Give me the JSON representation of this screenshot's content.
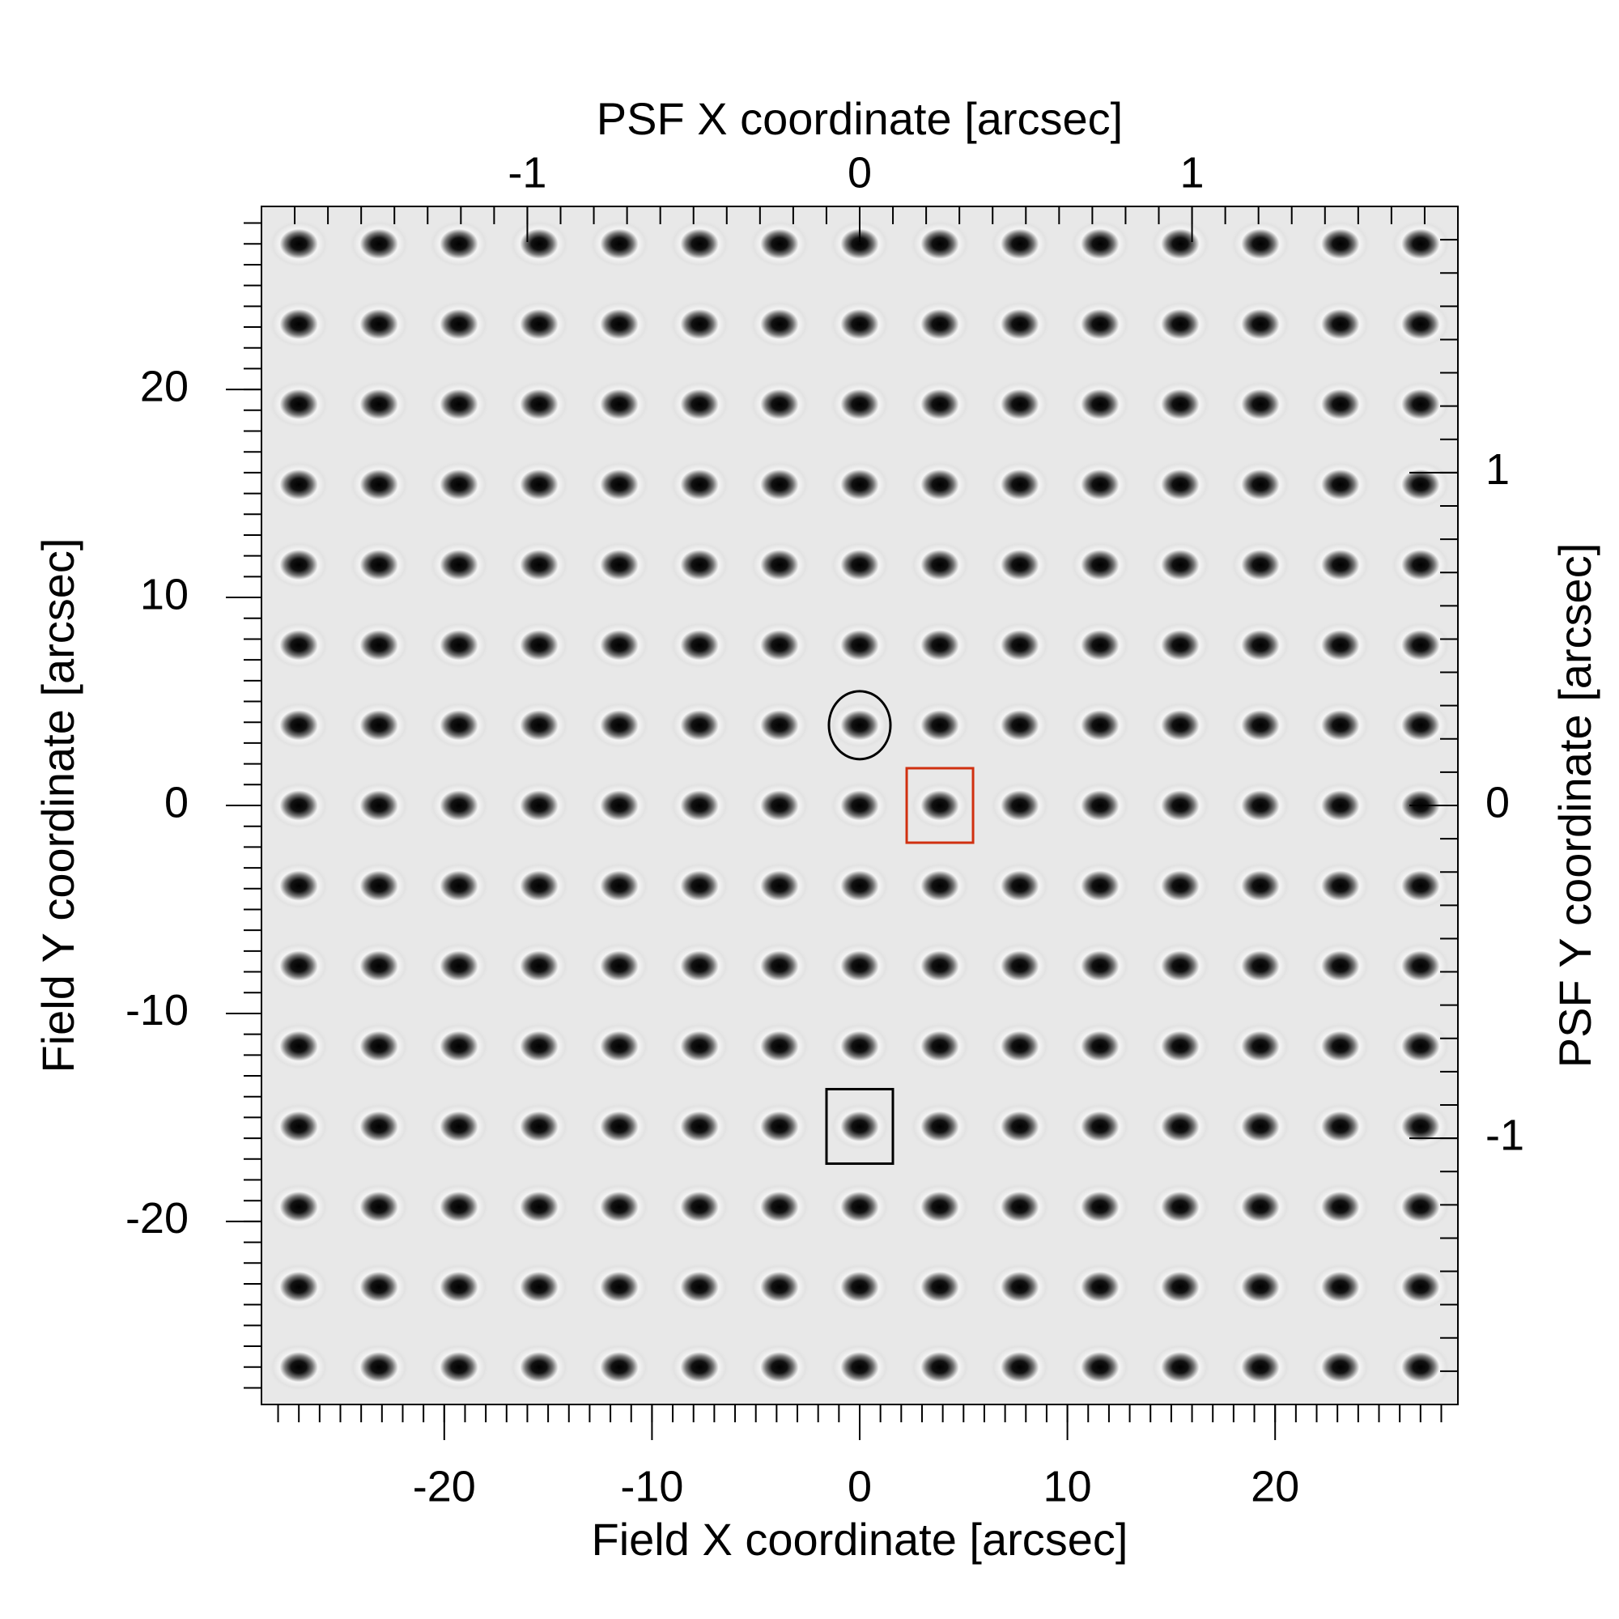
{
  "chart_data": {
    "type": "psf-grid",
    "x_title": "Field X coordinate [arcsec]",
    "y_title": "Field Y coordinate [arcsec]",
    "x2_title": "PSF X coordinate [arcsec]",
    "y2_title": "PSF Y coordinate [arcsec]",
    "xlim": [
      -28.8,
      28.8
    ],
    "ylim": [
      -28.8,
      28.8
    ],
    "x2lim": [
      -1.8,
      1.8
    ],
    "y2lim": [
      -1.8,
      1.8
    ],
    "xticks": [
      -20,
      -10,
      0,
      10,
      20
    ],
    "yticks": [
      -20,
      -10,
      0,
      10,
      20
    ],
    "x2ticks": [
      -1,
      0,
      1
    ],
    "y2ticks": [
      -1,
      0,
      1
    ],
    "xminor_step": 1,
    "yminor_step": 1,
    "x2minor_step": 0.1,
    "y2minor_step": 0.1,
    "psf_x": [
      -27,
      -23.14,
      -19.29,
      -15.43,
      -11.57,
      -7.71,
      -3.86,
      0,
      3.86,
      7.71,
      11.57,
      15.43,
      19.29,
      23.14,
      27
    ],
    "psf_y": [
      -27,
      -23.14,
      -19.29,
      -15.43,
      -11.57,
      -7.71,
      -3.86,
      0,
      3.86,
      7.71,
      11.57,
      15.43,
      19.29,
      23.14,
      27
    ],
    "background_color": "#e8e8e8",
    "markers": [
      {
        "shape": "circle",
        "x": 0,
        "y": 3.86,
        "color": "#000000"
      },
      {
        "shape": "square",
        "x": 3.86,
        "y": 0,
        "color": "#d03010"
      },
      {
        "shape": "square",
        "x": 0,
        "y": -15.43,
        "color": "#000000"
      }
    ]
  }
}
